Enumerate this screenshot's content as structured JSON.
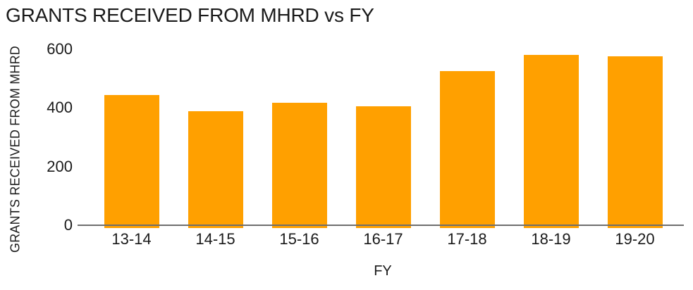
{
  "chart_data": {
    "type": "bar",
    "title": "GRANTS RECEIVED FROM MHRD vs FY",
    "xlabel": "FY",
    "ylabel": "GRANTS RECEIVED FROM MHRD",
    "categories": [
      "13-14",
      "14-15",
      "15-16",
      "16-17",
      "17-18",
      "18-19",
      "19-20"
    ],
    "values": [
      443,
      389,
      417,
      406,
      525,
      580,
      575
    ],
    "ylim": [
      0,
      600
    ],
    "yticks": [
      0,
      200,
      400,
      600
    ],
    "grid": false,
    "legend": false,
    "bar_color": "#FFA000",
    "axis_color": "#6E6E6E",
    "text_color": "#1A1A1A",
    "background": "#FFFFFF"
  }
}
